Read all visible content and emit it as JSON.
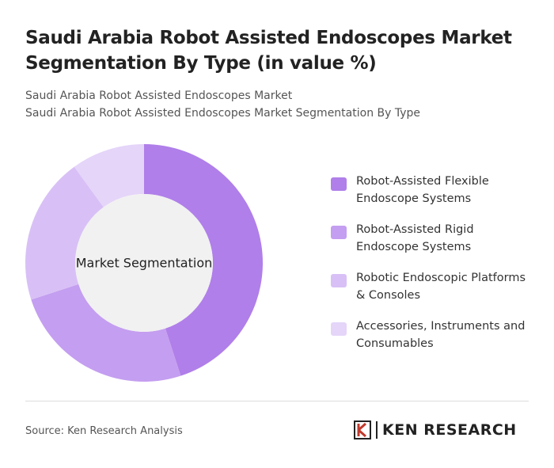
{
  "chart_data": {
    "type": "donut",
    "title": "Saudi Arabia Robot Assisted Endoscopes Market Segmentation By Type (in value %)",
    "subtitle": [
      "Saudi Arabia Robot Assisted Endoscopes Market",
      "Saudi Arabia Robot Assisted Endoscopes Market Segmentation By Type"
    ],
    "center_label": "Market Segmentation",
    "categories": [
      "Robot-Assisted Flexible Endoscope Systems",
      "Robot-Assisted Rigid Endoscope Systems",
      "Robotic Endoscopic Platforms & Consoles",
      "Accessories, Instruments and Consumables"
    ],
    "values": [
      45,
      25,
      20,
      10
    ],
    "colors": [
      "#b07fe9",
      "#c49ef0",
      "#d8c0f6",
      "#e5d5f9"
    ],
    "source": "Source: Ken Research Analysis",
    "brand": "KEN RESEARCH"
  }
}
